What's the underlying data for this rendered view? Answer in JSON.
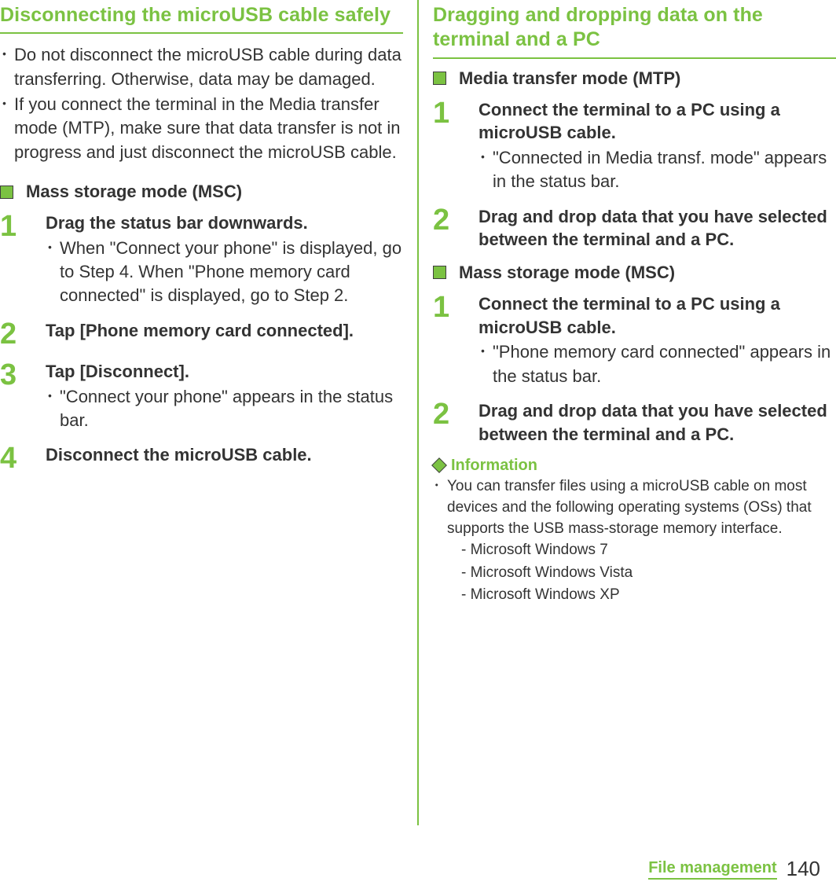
{
  "colors": {
    "accent": "#7bc242",
    "text": "#333333",
    "background": "#ffffff",
    "square_border": "#3f3f3f"
  },
  "left": {
    "title": "Disconnecting the microUSB cable safely",
    "bullets": [
      "Do not disconnect the microUSB cable during data transferring. Otherwise, data may be damaged.",
      "If you connect the terminal in the Media transfer mode (MTP), make sure that data transfer is not in progress and just disconnect the microUSB cable."
    ],
    "msc_title": "Mass storage mode (MSC)",
    "steps": [
      {
        "num": "1",
        "title": "Drag the status bar downwards.",
        "note": "When \"Connect your phone\" is displayed, go to Step 4. When \"Phone memory card connected\" is displayed, go to Step 2."
      },
      {
        "num": "2",
        "title": "Tap [Phone memory card connected].",
        "note": null
      },
      {
        "num": "3",
        "title": "Tap [Disconnect].",
        "note": "\"Connect your phone\" appears in the status bar."
      },
      {
        "num": "4",
        "title": "Disconnect the microUSB cable.",
        "note": null
      }
    ]
  },
  "right": {
    "title": "Dragging and dropping data on the terminal and a PC",
    "mtp_title": "Media transfer mode (MTP)",
    "mtp_steps": [
      {
        "num": "1",
        "title": "Connect the terminal to a PC using a microUSB cable.",
        "note": "\"Connected in Media transf. mode\" appears in the status bar."
      },
      {
        "num": "2",
        "title": "Drag and drop data that you have selected between the terminal and a PC.",
        "note": null
      }
    ],
    "msc_title": "Mass storage mode (MSC)",
    "msc_steps": [
      {
        "num": "1",
        "title": "Connect the terminal to a PC using a microUSB cable.",
        "note": "\"Phone memory card connected\" appears in the status bar."
      },
      {
        "num": "2",
        "title": "Drag and drop data that you have selected between the terminal and a PC.",
        "note": null
      }
    ],
    "info_title": "Information",
    "info_text": "You can transfer files using a microUSB cable on most devices and the following operating systems (OSs) that supports the USB mass-storage memory interface.",
    "info_sub": [
      "- Microsoft Windows 7",
      "- Microsoft Windows Vista",
      "- Microsoft Windows XP"
    ]
  },
  "footer": {
    "label": "File management",
    "page": "140"
  }
}
